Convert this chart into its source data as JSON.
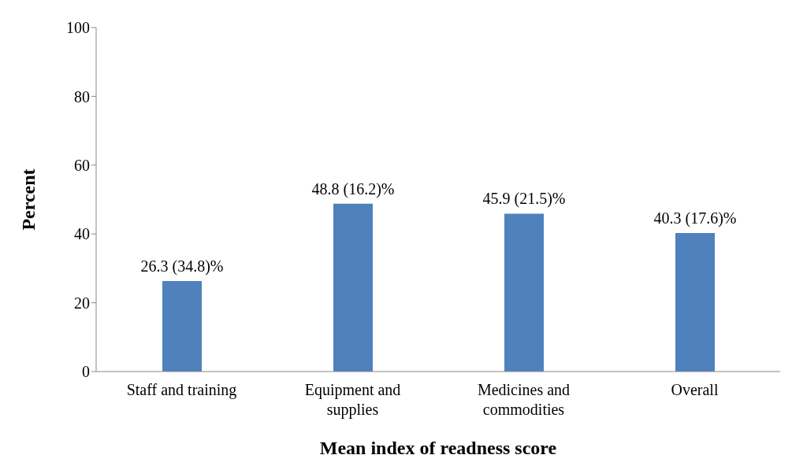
{
  "chart_data": {
    "type": "bar",
    "xlabel": "Mean index of readness score",
    "ylabel": "Percent",
    "categories": [
      "Staff and training",
      "Equipment and supplies",
      "Medicines and commodities",
      "Overall"
    ],
    "values": [
      26.3,
      48.8,
      45.9,
      40.3
    ],
    "value_labels": [
      "26.3 (34.8)%",
      "48.8 (16.2)%",
      "45.9 (21.5)%",
      "40.3 (17.6)%"
    ],
    "color": "#4f81bd",
    "ylim": [
      0,
      100
    ],
    "yticks": [
      0,
      20,
      40,
      60,
      80,
      100
    ],
    "grid": false,
    "legend": false
  }
}
